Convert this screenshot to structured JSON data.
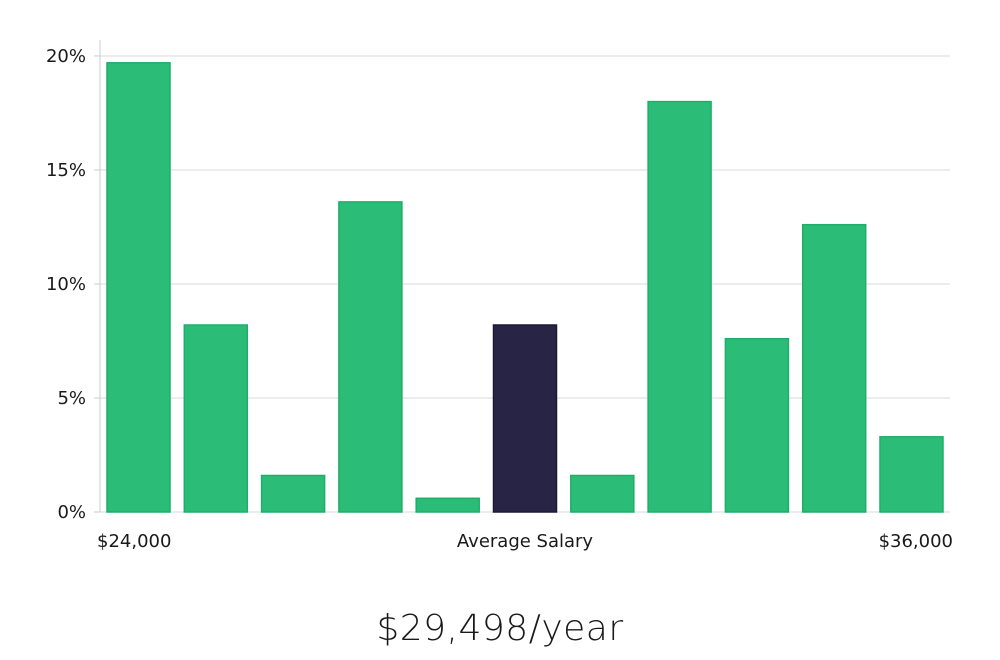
{
  "chart_data": {
    "type": "bar",
    "values": [
      19.7,
      8.2,
      1.6,
      13.6,
      0.6,
      8.2,
      1.6,
      18.0,
      7.6,
      12.6,
      3.3
    ],
    "highlight_index": 5,
    "x_tick_labels": {
      "left": "$24,000",
      "center": "Average Salary",
      "right": "$36,000"
    },
    "y_ticks": [
      0,
      5,
      10,
      15,
      20
    ],
    "y_tick_labels": [
      "0%",
      "5%",
      "10%",
      "15%",
      "20%"
    ],
    "ylim": [
      0,
      20.7
    ],
    "grid": true,
    "colors": {
      "bar": "#2bbd77",
      "bar_edge": "#1fae69",
      "highlight": "#282446",
      "grid": "#d9d9d9",
      "axis": "#cccccc"
    }
  },
  "summary": {
    "salary_text": "$29,498/year"
  }
}
